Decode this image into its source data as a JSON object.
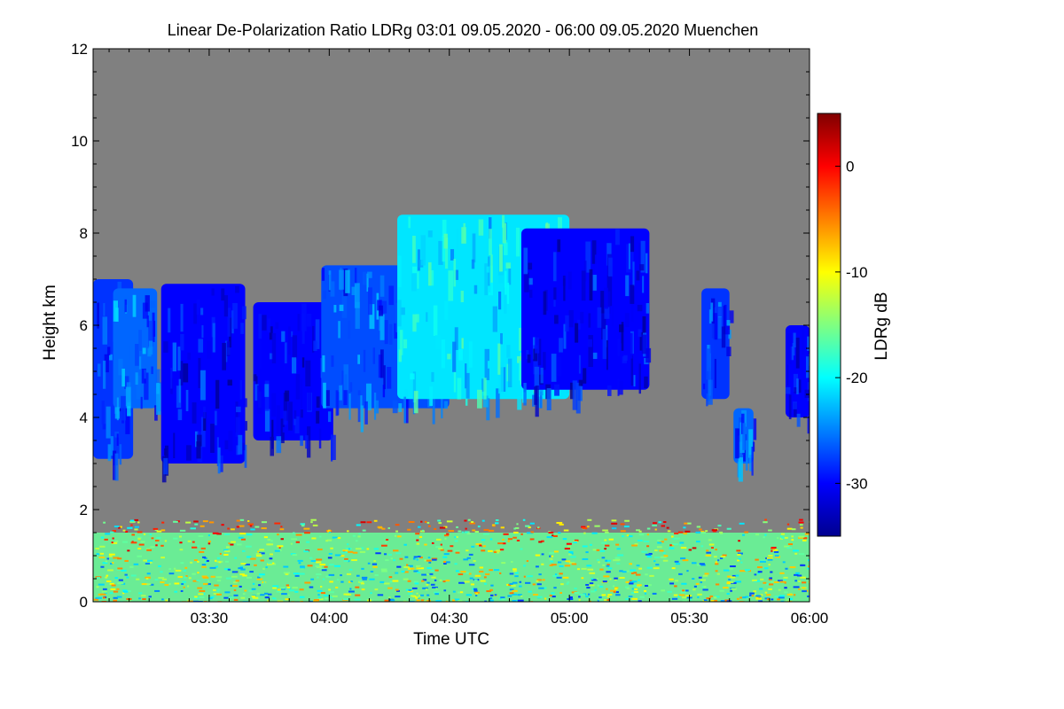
{
  "chart_data": {
    "type": "heatmap",
    "title": "Linear De-Polarization Ratio LDRg   03:01 09.05.2020 - 06:00 09.05.2020 Muenchen",
    "xlabel": "Time UTC",
    "ylabel": "Height km",
    "x_range": [
      "03:01",
      "06:00"
    ],
    "xticks": [
      {
        "t": "03:30",
        "min": 210
      },
      {
        "t": "04:00",
        "min": 240
      },
      {
        "t": "04:30",
        "min": 270
      },
      {
        "t": "05:00",
        "min": 300
      },
      {
        "t": "05:30",
        "min": 330
      },
      {
        "t": "06:00",
        "min": 360
      }
    ],
    "ylim": [
      0,
      12
    ],
    "yticks": [
      0,
      2,
      4,
      6,
      8,
      10,
      12
    ],
    "background_color": "#808080",
    "colorbar": {
      "label": "LDRg dB",
      "range": [
        -35,
        5
      ],
      "ticks": [
        0,
        -10,
        -20,
        -30
      ],
      "colormap": [
        "#00008f",
        "#0000ff",
        "#0080ff",
        "#00ffff",
        "#80ff80",
        "#ffff00",
        "#ff8000",
        "#ff0000",
        "#800000"
      ]
    },
    "regions": [
      {
        "desc": "cloud",
        "t0": 181,
        "t1": 191,
        "h0": 3.1,
        "h1": 7.0,
        "ldr": -28
      },
      {
        "desc": "cloud",
        "t0": 186,
        "t1": 197,
        "h0": 4.2,
        "h1": 6.8,
        "ldr": -26
      },
      {
        "desc": "cloud",
        "t0": 198,
        "t1": 219,
        "h0": 3.0,
        "h1": 6.9,
        "ldr": -30
      },
      {
        "desc": "cloud",
        "t0": 221,
        "t1": 241,
        "h0": 3.5,
        "h1": 6.5,
        "ldr": -30
      },
      {
        "desc": "cloud",
        "t0": 238,
        "t1": 270,
        "h0": 4.2,
        "h1": 7.3,
        "ldr": -27
      },
      {
        "desc": "cloud",
        "t0": 257,
        "t1": 300,
        "h0": 4.4,
        "h1": 8.4,
        "ldr": -21
      },
      {
        "desc": "cloud",
        "t0": 288,
        "t1": 320,
        "h0": 4.6,
        "h1": 8.1,
        "ldr": -30
      },
      {
        "desc": "cloud",
        "t0": 333,
        "t1": 340,
        "h0": 4.4,
        "h1": 6.8,
        "ldr": -28
      },
      {
        "desc": "cloud",
        "t0": 341,
        "t1": 346,
        "h0": 3.0,
        "h1": 4.2,
        "ldr": -26
      },
      {
        "desc": "cloud",
        "t0": 354,
        "t1": 360,
        "h0": 4.0,
        "h1": 6.0,
        "ldr": -30
      },
      {
        "desc": "boundary layer",
        "t0": 181,
        "t1": 360,
        "h0": 0.0,
        "h1": 1.5,
        "ldr": -16
      }
    ]
  }
}
